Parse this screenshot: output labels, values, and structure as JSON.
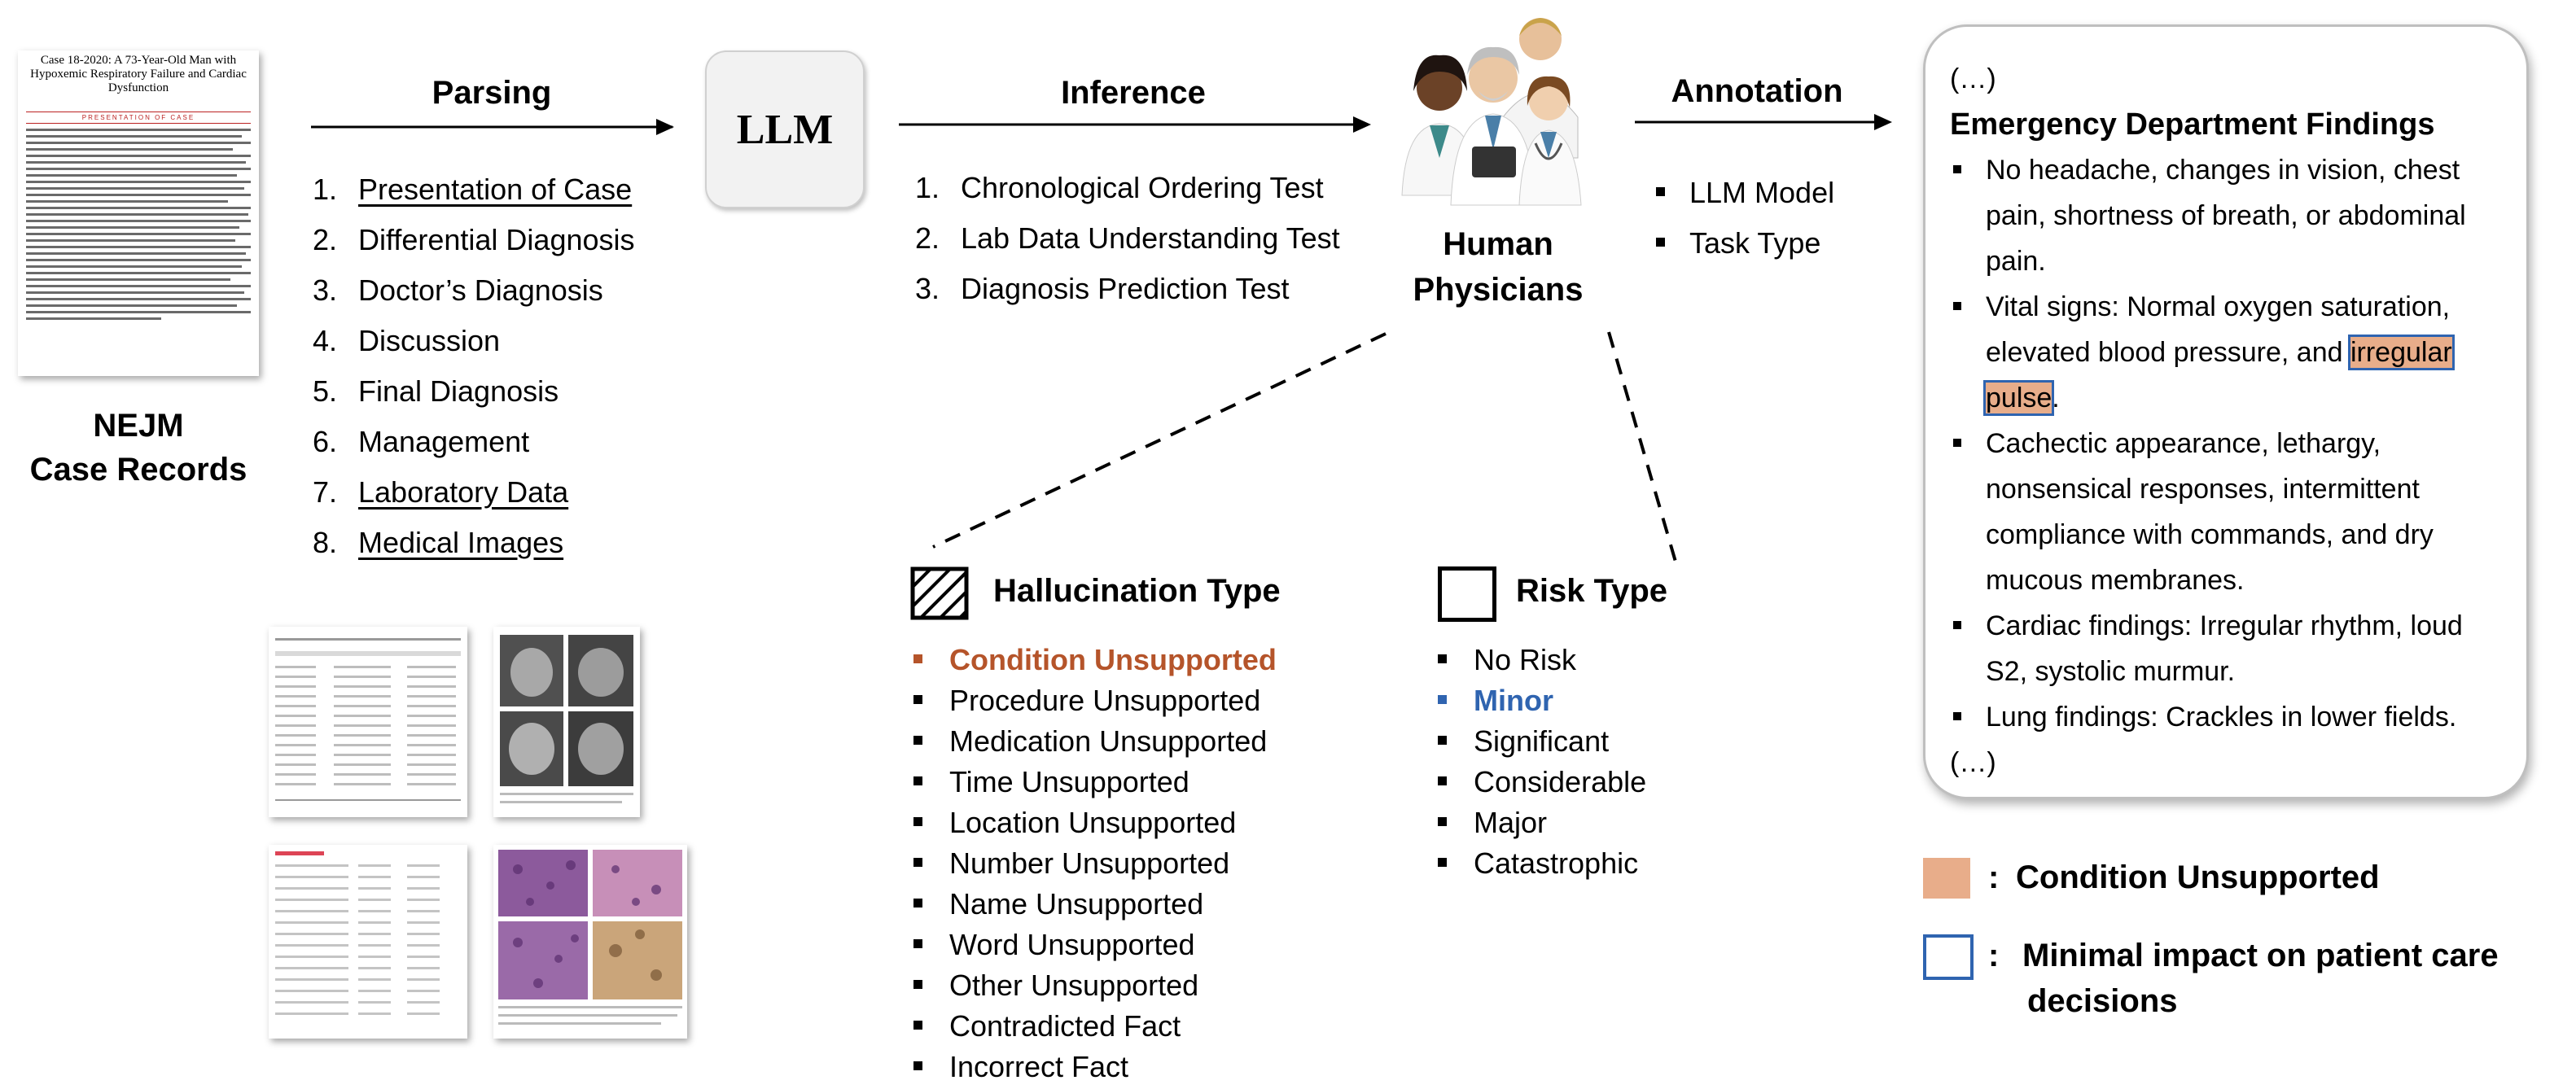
{
  "source": {
    "doc_title": "Case 18-2020: A 73-Year-Old Man with Hypoxemic Respiratory Failure and Cardiac Dysfunction",
    "doc_section": "PRESENTATION OF CASE",
    "caption_line1": "NEJM",
    "caption_line2": "Case Records"
  },
  "parsing": {
    "label": "Parsing",
    "items": [
      {
        "num": "1.",
        "text": "Presentation of Case"
      },
      {
        "num": "2.",
        "text": "Differential Diagnosis"
      },
      {
        "num": "3.",
        "text": "Doctor’s Diagnosis"
      },
      {
        "num": "4.",
        "text": "Discussion"
      },
      {
        "num": "5.",
        "text": "Final Diagnosis"
      },
      {
        "num": "6.",
        "text": "Management"
      },
      {
        "num": "7.",
        "text": "Laboratory Data"
      },
      {
        "num": "8.",
        "text": "Medical Images"
      }
    ]
  },
  "llm": {
    "label": "LLM"
  },
  "inference": {
    "label": "Inference",
    "items": [
      {
        "num": "1.",
        "text": "Chronological Ordering Test"
      },
      {
        "num": "2.",
        "text": "Lab Data Understanding Test"
      },
      {
        "num": "3.",
        "text": "Diagnosis Prediction Test"
      }
    ]
  },
  "physicians": {
    "line1": "Human",
    "line2": "Physicians"
  },
  "annotation": {
    "label": "Annotation",
    "items": [
      "LLM Model",
      "Task Type"
    ]
  },
  "findings": {
    "ellipsis_top": "(…)",
    "title": "Emergency Department Findings",
    "b1_line1": "No headache, changes in vision, chest",
    "b1_line2": "pain, shortness of breath, or abdominal",
    "b1_line3": "pain.",
    "b2_line1": "Vital signs: Normal oxygen saturation,",
    "b2_line2_pre": "elevated blood pressure, and ",
    "b2_hl1": "irregular",
    "b2_hl2": "pulse",
    "b2_post": ".",
    "b3_line1": "Cachectic appearance, lethargy,",
    "b3_line2": "nonsensical responses, intermittent",
    "b3_line3": "compliance with commands, and dry",
    "b3_line4": "mucous membranes.",
    "b4_line1": "Cardiac findings: Irregular rhythm, loud",
    "b4_line2": "S2, systolic murmur.",
    "b5_line1": "Lung findings: Crackles in lower fields.",
    "ellipsis_bottom": "(…)"
  },
  "hallucination": {
    "title": "Hallucination Type",
    "highlight_color": "#b5542a",
    "items": [
      "Condition Unsupported",
      "Procedure Unsupported",
      "Medication Unsupported",
      "Time Unsupported",
      "Location Unsupported",
      "Number Unsupported",
      "Name Unsupported",
      "Word Unsupported",
      "Other Unsupported",
      "Contradicted Fact",
      "Incorrect Fact"
    ]
  },
  "risk": {
    "title": "Risk Type",
    "highlight_color": "#2f64b0",
    "items": [
      "No Risk",
      "Minor",
      "Significant",
      "Considerable",
      "Major",
      "Catastrophic"
    ]
  },
  "legend": {
    "colon": ":",
    "condition_label": "Condition Unsupported",
    "condition_color": "#e8ad8a",
    "minimal_line1": "Minimal impact on patient care",
    "minimal_line2": "decisions",
    "minimal_color": "#2f64b0"
  }
}
